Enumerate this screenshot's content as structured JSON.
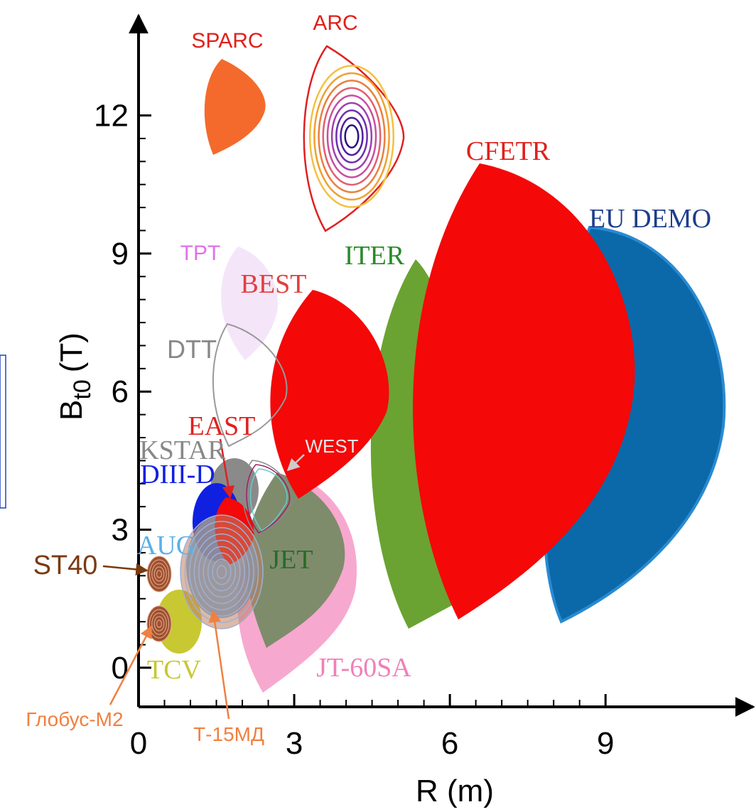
{
  "chart_data": {
    "type": "region",
    "x_label": "R (m)",
    "y_label": {
      "symbol": "B",
      "subscript": "t0",
      "unit": "(T)"
    },
    "xlim": [
      0,
      11.9
    ],
    "ylim": [
      -0.85,
      14.2
    ],
    "xticks": [
      0,
      3,
      6,
      9
    ],
    "yticks": [
      0,
      3,
      6,
      9,
      12
    ],
    "devices": [
      "SPARC",
      "ARC",
      "CFETR",
      "EU DEMO",
      "ITER",
      "TPT",
      "BEST",
      "DTT",
      "EAST",
      "WEST",
      "KSTAR",
      "DIII-D",
      "AUG",
      "ST40",
      "JET",
      "TCV",
      "JT-60SA",
      "Глобус-М2",
      "Т-15МД"
    ]
  }
}
